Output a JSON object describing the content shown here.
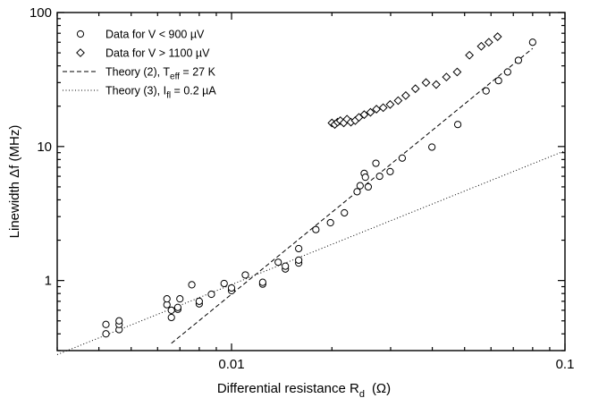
{
  "chart_data": {
    "type": "scatter",
    "title": "",
    "xlabel_main": "Differential resistance R",
    "xlabel_sub": "d",
    "xlabel_unit": "(Ω)",
    "ylabel": "Linewidth  Δf (MHz)",
    "x_scale": "log",
    "y_scale": "log",
    "xlim": [
      0.003,
      0.1
    ],
    "ylim": [
      0.3,
      100
    ],
    "x_ticks": [
      {
        "value": 0.01,
        "label": "0.01"
      },
      {
        "value": 0.1,
        "label": "0.1"
      }
    ],
    "y_ticks": [
      {
        "value": 1,
        "label": "1"
      },
      {
        "value": 10,
        "label": "10"
      },
      {
        "value": 100,
        "label": "100"
      }
    ],
    "grid": false,
    "legend_position": "top-left",
    "legend": [
      {
        "marker": "circle",
        "text": "Data for V < 900 µV"
      },
      {
        "marker": "diamond",
        "text": "Data for  V > 1100 µV"
      },
      {
        "marker": "dashed",
        "text_parts": [
          "Theory (2), T",
          "eff",
          " = 27 K"
        ]
      },
      {
        "marker": "dotted",
        "text_parts": [
          "Theory (3), I",
          "fl",
          " = 0.2 µA"
        ]
      }
    ],
    "series": [
      {
        "name": "Data for V < 900 µV",
        "marker": "circle",
        "points": [
          [
            0.0042,
            0.4
          ],
          [
            0.0042,
            0.47
          ],
          [
            0.0046,
            0.43
          ],
          [
            0.0046,
            0.47
          ],
          [
            0.0046,
            0.5
          ],
          [
            0.0064,
            0.66
          ],
          [
            0.0064,
            0.73
          ],
          [
            0.0066,
            0.53
          ],
          [
            0.0066,
            0.6
          ],
          [
            0.0069,
            0.61
          ],
          [
            0.0069,
            0.63
          ],
          [
            0.007,
            0.73
          ],
          [
            0.0076,
            0.93
          ],
          [
            0.008,
            0.67
          ],
          [
            0.008,
            0.7
          ],
          [
            0.0087,
            0.79
          ],
          [
            0.0095,
            0.95
          ],
          [
            0.01,
            0.84
          ],
          [
            0.01,
            0.88
          ],
          [
            0.011,
            1.1
          ],
          [
            0.0124,
            0.94
          ],
          [
            0.0124,
            0.97
          ],
          [
            0.0138,
            1.37
          ],
          [
            0.0145,
            1.22
          ],
          [
            0.0145,
            1.28
          ],
          [
            0.0159,
            1.35
          ],
          [
            0.0159,
            1.42
          ],
          [
            0.0159,
            1.73
          ],
          [
            0.0179,
            2.4
          ],
          [
            0.0198,
            2.7
          ],
          [
            0.0218,
            3.2
          ],
          [
            0.0238,
            4.6
          ],
          [
            0.0243,
            5.1
          ],
          [
            0.025,
            6.3
          ],
          [
            0.0252,
            5.9
          ],
          [
            0.0257,
            5.0
          ],
          [
            0.0271,
            7.5
          ],
          [
            0.0278,
            6.0
          ],
          [
            0.0299,
            6.5
          ],
          [
            0.0325,
            8.2
          ],
          [
            0.0399,
            9.9
          ],
          [
            0.0477,
            14.6
          ],
          [
            0.058,
            26.0
          ],
          [
            0.0632,
            31.0
          ],
          [
            0.0673,
            36.0
          ],
          [
            0.0725,
            44.0
          ],
          [
            0.08,
            60.0
          ]
        ]
      },
      {
        "name": "Data for  V > 1100 µV",
        "marker": "diamond",
        "points": [
          [
            0.02,
            15.0
          ],
          [
            0.0204,
            14.6
          ],
          [
            0.0208,
            15.2
          ],
          [
            0.0212,
            15.6
          ],
          [
            0.0217,
            15.0
          ],
          [
            0.0222,
            16.0
          ],
          [
            0.0228,
            15.2
          ],
          [
            0.0235,
            15.6
          ],
          [
            0.0241,
            16.5
          ],
          [
            0.025,
            17.3
          ],
          [
            0.0261,
            18.0
          ],
          [
            0.0272,
            19.0
          ],
          [
            0.0285,
            19.5
          ],
          [
            0.0299,
            20.6
          ],
          [
            0.0316,
            22.0
          ],
          [
            0.0333,
            24.0
          ],
          [
            0.0356,
            27.0
          ],
          [
            0.0383,
            30.0
          ],
          [
            0.0411,
            29.0
          ],
          [
            0.0441,
            33.0
          ],
          [
            0.0475,
            36.0
          ],
          [
            0.0517,
            48.0
          ],
          [
            0.0561,
            56.0
          ],
          [
            0.0591,
            60.0
          ],
          [
            0.0628,
            66.0
          ]
        ]
      },
      {
        "name": "Theory (2)",
        "marker": "dashed-line",
        "points": [
          [
            0.0066,
            0.34
          ],
          [
            0.08,
            54.0
          ]
        ]
      },
      {
        "name": "Theory (3)",
        "marker": "dotted-line",
        "points": [
          [
            0.003,
            0.28
          ],
          [
            0.1,
            9.3
          ]
        ]
      }
    ]
  }
}
